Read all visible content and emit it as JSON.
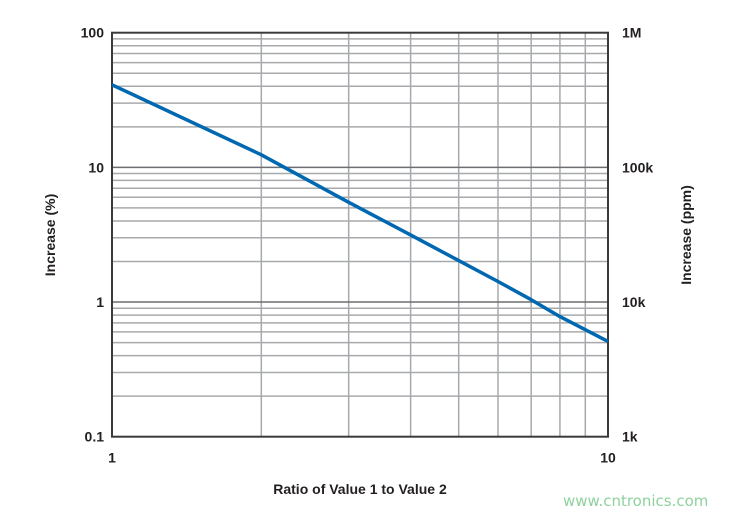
{
  "chart_data": {
    "type": "line",
    "title": "",
    "xlabel": "Ratio of Value 1 to Value 2",
    "ylabel": "Increase (%)",
    "y2label": "Increase (ppm)",
    "xscale": "log",
    "yscale": "log",
    "xlim": [
      1,
      10
    ],
    "ylim": [
      0.1,
      100
    ],
    "x_ticks": [
      "1",
      "10"
    ],
    "y_ticks": [
      "0.1",
      "1",
      "10",
      "100"
    ],
    "y2_ticks": [
      "1k",
      "10k",
      "100k",
      "1M"
    ],
    "grid": true,
    "legend": "none",
    "series": [
      {
        "color": "#0067b1",
        "x": [
          1,
          2,
          3,
          4,
          5,
          6,
          7,
          8,
          10
        ],
        "y": [
          41,
          12.4,
          5.5,
          3.15,
          2.03,
          1.42,
          1.04,
          0.78,
          0.51
        ]
      }
    ]
  },
  "watermark": "www.cntronics.com"
}
